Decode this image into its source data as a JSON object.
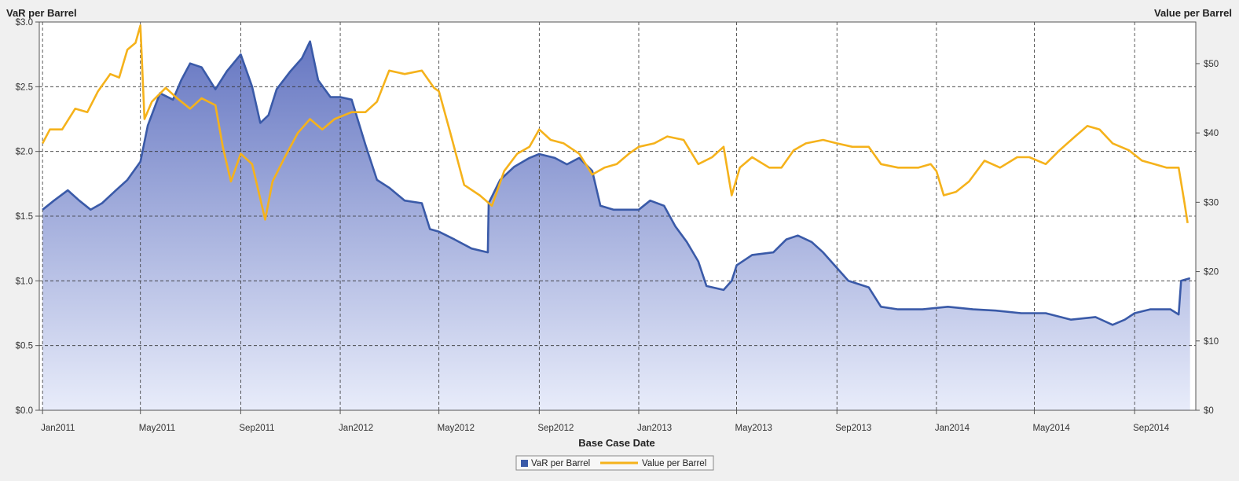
{
  "colors": {
    "var_series": "#3a5aa8",
    "value_series": "#f5b21b",
    "area_top": "#6677c2",
    "area_bottom": "#e8ecfa",
    "grid": "#333333",
    "plot_bg": "#ffffff",
    "page_bg": "#f0f0f0"
  },
  "chart_data": {
    "type": "area",
    "title": "",
    "xlabel": "Base Case Date",
    "ylabel_left": "VaR per Barrel",
    "ylabel_right": "Value per Barrel",
    "ylim_left": [
      0,
      3.0
    ],
    "ylim_right": [
      0,
      56
    ],
    "xlim": [
      "2010-12-28",
      "2014-11-15"
    ],
    "grid": true,
    "legend_position": "bottom-center",
    "x_ticks": [
      "2011-01-01",
      "2011-05-01",
      "2011-09-01",
      "2012-01-01",
      "2012-05-01",
      "2012-09-01",
      "2013-01-01",
      "2013-05-01",
      "2013-09-01",
      "2014-01-01",
      "2014-05-01",
      "2014-09-01"
    ],
    "x_tick_labels": [
      "Jan2011",
      "May2011",
      "Sep2011",
      "Jan2012",
      "May2012",
      "Sep2012",
      "Jan2013",
      "May2013",
      "Sep2013",
      "Jan2014",
      "May2014",
      "Sep2014"
    ],
    "y_left_ticks": [
      0,
      0.5,
      1.0,
      1.5,
      2.0,
      2.5,
      3.0
    ],
    "y_left_tick_labels": [
      "$0.0",
      "$0.5",
      "$1.0",
      "$1.5",
      "$2.0",
      "$2.5",
      "$3.0"
    ],
    "y_right_ticks": [
      0,
      10,
      20,
      30,
      40,
      50
    ],
    "y_right_tick_labels": [
      "$0",
      "$10",
      "$20",
      "$30",
      "$40",
      "$50"
    ],
    "series": [
      {
        "name": "VaR per Barrel",
        "axis": "left",
        "style": "area",
        "points": [
          [
            "2011-01-01",
            1.55
          ],
          [
            "2011-01-15",
            1.62
          ],
          [
            "2011-02-01",
            1.7
          ],
          [
            "2011-02-15",
            1.62
          ],
          [
            "2011-03-01",
            1.55
          ],
          [
            "2011-03-15",
            1.6
          ],
          [
            "2011-04-01",
            1.7
          ],
          [
            "2011-04-15",
            1.78
          ],
          [
            "2011-05-01",
            1.92
          ],
          [
            "2011-05-10",
            2.2
          ],
          [
            "2011-05-25",
            2.45
          ],
          [
            "2011-06-10",
            2.4
          ],
          [
            "2011-06-20",
            2.55
          ],
          [
            "2011-07-01",
            2.68
          ],
          [
            "2011-07-15",
            2.65
          ],
          [
            "2011-08-01",
            2.48
          ],
          [
            "2011-08-15",
            2.62
          ],
          [
            "2011-09-01",
            2.75
          ],
          [
            "2011-09-15",
            2.5
          ],
          [
            "2011-09-25",
            2.22
          ],
          [
            "2011-10-05",
            2.28
          ],
          [
            "2011-10-15",
            2.48
          ],
          [
            "2011-11-01",
            2.62
          ],
          [
            "2011-11-15",
            2.72
          ],
          [
            "2011-11-25",
            2.85
          ],
          [
            "2011-12-05",
            2.55
          ],
          [
            "2011-12-20",
            2.42
          ],
          [
            "2012-01-01",
            2.42
          ],
          [
            "2012-01-15",
            2.4
          ],
          [
            "2012-02-01",
            2.05
          ],
          [
            "2012-02-15",
            1.78
          ],
          [
            "2012-03-01",
            1.72
          ],
          [
            "2012-03-20",
            1.62
          ],
          [
            "2012-04-10",
            1.6
          ],
          [
            "2012-04-20",
            1.4
          ],
          [
            "2012-05-01",
            1.38
          ],
          [
            "2012-05-20",
            1.32
          ],
          [
            "2012-06-10",
            1.25
          ],
          [
            "2012-06-30",
            1.22
          ],
          [
            "2012-07-01",
            1.6
          ],
          [
            "2012-07-15",
            1.78
          ],
          [
            "2012-08-01",
            1.88
          ],
          [
            "2012-08-20",
            1.95
          ],
          [
            "2012-09-01",
            1.98
          ],
          [
            "2012-09-20",
            1.95
          ],
          [
            "2012-10-05",
            1.9
          ],
          [
            "2012-10-20",
            1.95
          ],
          [
            "2012-11-05",
            1.85
          ],
          [
            "2012-11-15",
            1.58
          ],
          [
            "2012-12-01",
            1.55
          ],
          [
            "2012-12-15",
            1.55
          ],
          [
            "2013-01-01",
            1.55
          ],
          [
            "2013-01-15",
            1.62
          ],
          [
            "2013-02-01",
            1.58
          ],
          [
            "2013-02-15",
            1.42
          ],
          [
            "2013-03-01",
            1.3
          ],
          [
            "2013-03-15",
            1.15
          ],
          [
            "2013-03-25",
            0.96
          ],
          [
            "2013-04-15",
            0.93
          ],
          [
            "2013-04-25",
            1.0
          ],
          [
            "2013-05-01",
            1.12
          ],
          [
            "2013-05-20",
            1.2
          ],
          [
            "2013-06-15",
            1.22
          ],
          [
            "2013-07-01",
            1.32
          ],
          [
            "2013-07-15",
            1.35
          ],
          [
            "2013-08-01",
            1.3
          ],
          [
            "2013-08-15",
            1.22
          ],
          [
            "2013-09-01",
            1.1
          ],
          [
            "2013-09-15",
            1.0
          ],
          [
            "2013-10-10",
            0.95
          ],
          [
            "2013-10-25",
            0.8
          ],
          [
            "2013-11-15",
            0.78
          ],
          [
            "2013-12-15",
            0.78
          ],
          [
            "2014-01-15",
            0.8
          ],
          [
            "2014-02-15",
            0.78
          ],
          [
            "2014-03-15",
            0.77
          ],
          [
            "2014-04-15",
            0.75
          ],
          [
            "2014-05-15",
            0.75
          ],
          [
            "2014-06-15",
            0.7
          ],
          [
            "2014-07-15",
            0.72
          ],
          [
            "2014-08-05",
            0.66
          ],
          [
            "2014-08-20",
            0.7
          ],
          [
            "2014-09-01",
            0.75
          ],
          [
            "2014-09-20",
            0.78
          ],
          [
            "2014-10-15",
            0.78
          ],
          [
            "2014-10-25",
            0.74
          ],
          [
            "2014-10-28",
            1.0
          ],
          [
            "2014-11-08",
            1.02
          ]
        ]
      },
      {
        "name": "Value per Barrel",
        "axis": "right",
        "style": "line",
        "points": [
          [
            "2011-01-01",
            38.5
          ],
          [
            "2011-01-10",
            40.5
          ],
          [
            "2011-01-25",
            40.5
          ],
          [
            "2011-02-10",
            43.5
          ],
          [
            "2011-02-25",
            43.0
          ],
          [
            "2011-03-10",
            46.0
          ],
          [
            "2011-03-25",
            48.5
          ],
          [
            "2011-04-05",
            48.0
          ],
          [
            "2011-04-15",
            52.0
          ],
          [
            "2011-04-25",
            53.0
          ],
          [
            "2011-05-01",
            55.5
          ],
          [
            "2011-05-06",
            42.0
          ],
          [
            "2011-05-15",
            44.5
          ],
          [
            "2011-06-01",
            46.5
          ],
          [
            "2011-06-15",
            45.0
          ],
          [
            "2011-07-01",
            43.5
          ],
          [
            "2011-07-15",
            45.0
          ],
          [
            "2011-08-01",
            44.0
          ],
          [
            "2011-08-10",
            38.0
          ],
          [
            "2011-08-20",
            33.0
          ],
          [
            "2011-09-01",
            37.0
          ],
          [
            "2011-09-15",
            35.5
          ],
          [
            "2011-10-01",
            27.5
          ],
          [
            "2011-10-10",
            33.0
          ],
          [
            "2011-10-25",
            36.5
          ],
          [
            "2011-11-10",
            40.0
          ],
          [
            "2011-11-25",
            42.0
          ],
          [
            "2011-12-10",
            40.5
          ],
          [
            "2011-12-25",
            42.0
          ],
          [
            "2012-01-15",
            43.0
          ],
          [
            "2012-02-01",
            43.0
          ],
          [
            "2012-02-15",
            44.5
          ],
          [
            "2012-03-01",
            49.0
          ],
          [
            "2012-03-20",
            48.5
          ],
          [
            "2012-04-10",
            49.0
          ],
          [
            "2012-04-25",
            46.5
          ],
          [
            "2012-05-01",
            46.0
          ],
          [
            "2012-05-15",
            40.0
          ],
          [
            "2012-06-01",
            32.5
          ],
          [
            "2012-06-20",
            31.0
          ],
          [
            "2012-07-05",
            29.5
          ],
          [
            "2012-07-20",
            34.5
          ],
          [
            "2012-08-05",
            37.0
          ],
          [
            "2012-08-20",
            38.0
          ],
          [
            "2012-09-01",
            40.5
          ],
          [
            "2012-09-15",
            39.0
          ],
          [
            "2012-10-01",
            38.5
          ],
          [
            "2012-10-20",
            37.0
          ],
          [
            "2012-11-05",
            34.0
          ],
          [
            "2012-11-20",
            35.0
          ],
          [
            "2012-12-05",
            35.5
          ],
          [
            "2012-12-20",
            37.0
          ],
          [
            "2013-01-01",
            38.0
          ],
          [
            "2013-01-20",
            38.5
          ],
          [
            "2013-02-05",
            39.5
          ],
          [
            "2013-02-25",
            39.0
          ],
          [
            "2013-03-15",
            35.5
          ],
          [
            "2013-04-01",
            36.5
          ],
          [
            "2013-04-15",
            38.0
          ],
          [
            "2013-04-25",
            31.0
          ],
          [
            "2013-05-05",
            35.0
          ],
          [
            "2013-05-20",
            36.5
          ],
          [
            "2013-06-10",
            35.0
          ],
          [
            "2013-06-25",
            35.0
          ],
          [
            "2013-07-10",
            37.5
          ],
          [
            "2013-07-25",
            38.5
          ],
          [
            "2013-08-15",
            39.0
          ],
          [
            "2013-09-01",
            38.5
          ],
          [
            "2013-09-20",
            38.0
          ],
          [
            "2013-10-10",
            38.0
          ],
          [
            "2013-10-25",
            35.5
          ],
          [
            "2013-11-15",
            35.0
          ],
          [
            "2013-12-10",
            35.0
          ],
          [
            "2013-12-25",
            35.5
          ],
          [
            "2014-01-01",
            34.5
          ],
          [
            "2014-01-10",
            31.0
          ],
          [
            "2014-01-25",
            31.5
          ],
          [
            "2014-02-10",
            33.0
          ],
          [
            "2014-03-01",
            36.0
          ],
          [
            "2014-03-20",
            35.0
          ],
          [
            "2014-04-10",
            36.5
          ],
          [
            "2014-04-25",
            36.5
          ],
          [
            "2014-05-05",
            36.0
          ],
          [
            "2014-05-15",
            35.5
          ],
          [
            "2014-06-01",
            37.5
          ],
          [
            "2014-06-20",
            39.5
          ],
          [
            "2014-07-05",
            41.0
          ],
          [
            "2014-07-20",
            40.5
          ],
          [
            "2014-08-05",
            38.5
          ],
          [
            "2014-08-25",
            37.5
          ],
          [
            "2014-09-10",
            36.0
          ],
          [
            "2014-09-25",
            35.5
          ],
          [
            "2014-10-10",
            35.0
          ],
          [
            "2014-10-25",
            35.0
          ],
          [
            "2014-11-01",
            30.0
          ],
          [
            "2014-11-05",
            27.0
          ]
        ]
      }
    ]
  }
}
